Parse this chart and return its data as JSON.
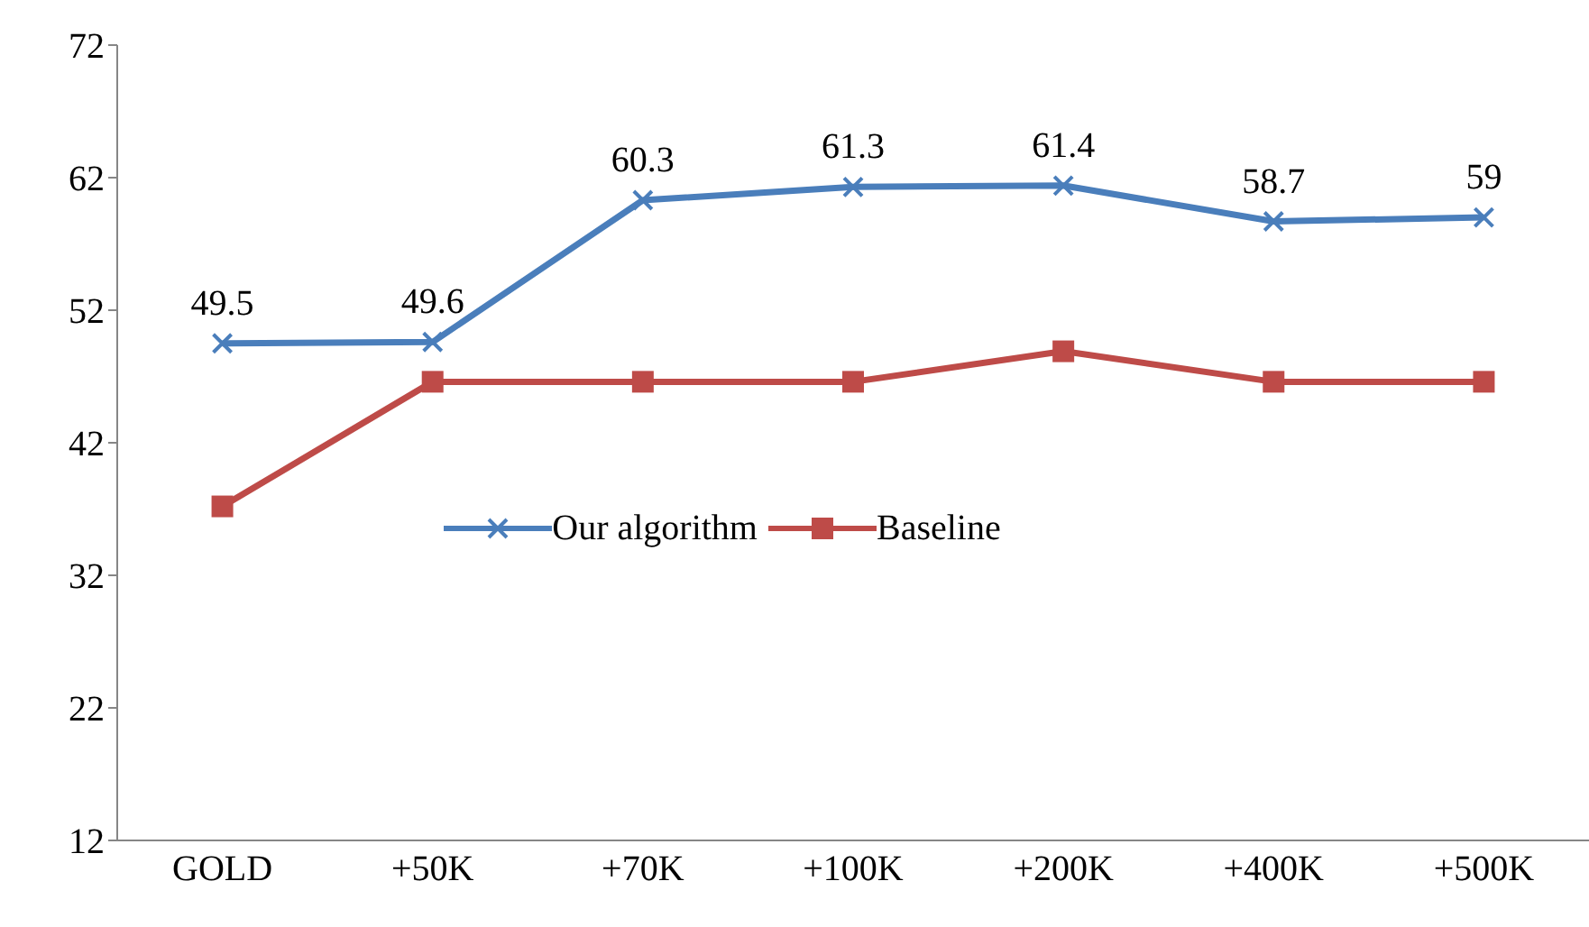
{
  "chart_data": {
    "type": "line",
    "categories": [
      "GOLD",
      "+50K",
      "+70K",
      "+100K",
      "+200K",
      "+400K",
      "+500K"
    ],
    "series": [
      {
        "name": "Our algorithm",
        "color": "#4a7ebb",
        "marker": "cross",
        "values": [
          49.5,
          49.6,
          60.3,
          61.3,
          61.4,
          58.7,
          59
        ],
        "value_labels": [
          "49.5",
          "49.6",
          "60.3",
          "61.3",
          "61.4",
          "58.7",
          "59"
        ]
      },
      {
        "name": "Baseline",
        "color": "#be4b48",
        "marker": "square",
        "values": [
          37.2,
          46.6,
          46.6,
          46.6,
          48.9,
          46.6,
          46.6
        ]
      }
    ],
    "ylim": [
      12,
      72
    ],
    "yticks": [
      12,
      22,
      32,
      42,
      52,
      62,
      72
    ],
    "grid": false,
    "legend": "center"
  }
}
